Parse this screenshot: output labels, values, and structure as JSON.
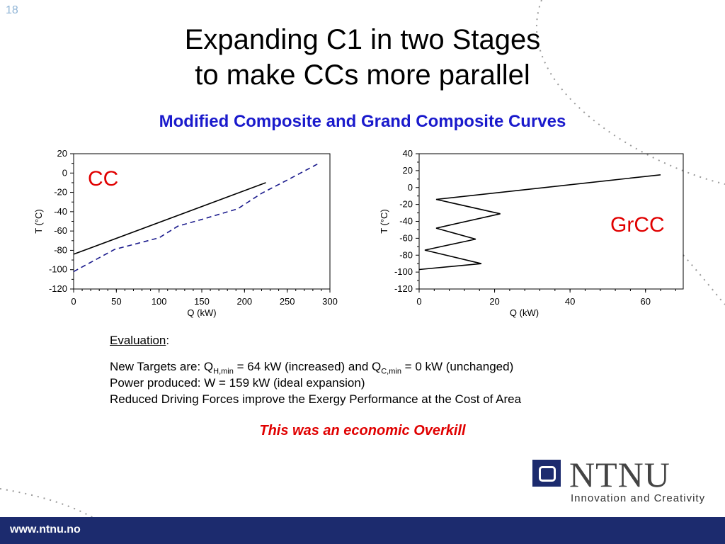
{
  "slide_number": "18",
  "title_line1": "Expanding C1 in two Stages",
  "title_line2": "to make CCs more parallel",
  "subtitle": "Modified Composite and Grand Composite Curves",
  "chart_data": [
    {
      "type": "line",
      "label": "CC",
      "xlabel": "Q (kW)",
      "ylabel": "T (°C)",
      "xlim": [
        0,
        300
      ],
      "ylim": [
        -120,
        20
      ],
      "xticks": [
        0,
        50,
        100,
        150,
        200,
        250,
        300
      ],
      "yticks": [
        20,
        0,
        -20,
        -40,
        -60,
        -80,
        -100,
        -120
      ],
      "grid": false,
      "series": [
        {
          "style": "solid",
          "color": "#000000",
          "x": [
            0,
            225
          ],
          "y": [
            -84,
            -10
          ]
        },
        {
          "style": "dashed",
          "color": "#1a1a8c",
          "x": [
            0,
            48,
            100,
            122,
            150,
            192,
            220,
            255,
            287
          ],
          "y": [
            -102,
            -79,
            -67,
            -55,
            -48,
            -37,
            -21,
            -5,
            10
          ]
        }
      ]
    },
    {
      "type": "line",
      "label": "GrCC",
      "xlabel": "Q (kW)",
      "ylabel": "T (°C)",
      "xlim": [
        0,
        70
      ],
      "ylim": [
        -120,
        40
      ],
      "xticks": [
        0,
        20,
        40,
        60
      ],
      "yticks": [
        40,
        20,
        0,
        -20,
        -40,
        -60,
        -80,
        -100,
        -120
      ],
      "grid": false,
      "series": [
        {
          "style": "solid",
          "color": "#000000",
          "x": [
            64,
            4.5,
            21.5,
            4.5,
            15,
            1.5,
            16.5,
            0
          ],
          "y": [
            15,
            -14,
            -31,
            -48,
            -61,
            -74,
            -90,
            -97
          ]
        }
      ]
    }
  ],
  "evaluation": {
    "heading": "Evaluation",
    "colon": ":",
    "line1_a": "New Targets are:    Q",
    "line1_sub1": "H,min",
    "line1_b": " = 64 kW (increased)   and   Q",
    "line1_sub2": "C,min",
    "line1_c": " = 0 kW  (unchanged)",
    "line2": "Power produced:    W  =  159 kW (ideal expansion)",
    "line3": "Reduced Driving Forces improve the Exergy Performance at the Cost of Area"
  },
  "conclusion": "This was an economic Overkill",
  "logo": {
    "name": "NTNU",
    "tagline": "Innovation and Creativity"
  },
  "footer_url": "www.ntnu.no",
  "colors": {
    "title_blue": "#1a1acc",
    "accent_red": "#e00000",
    "footer_navy": "#1c2b6e"
  }
}
